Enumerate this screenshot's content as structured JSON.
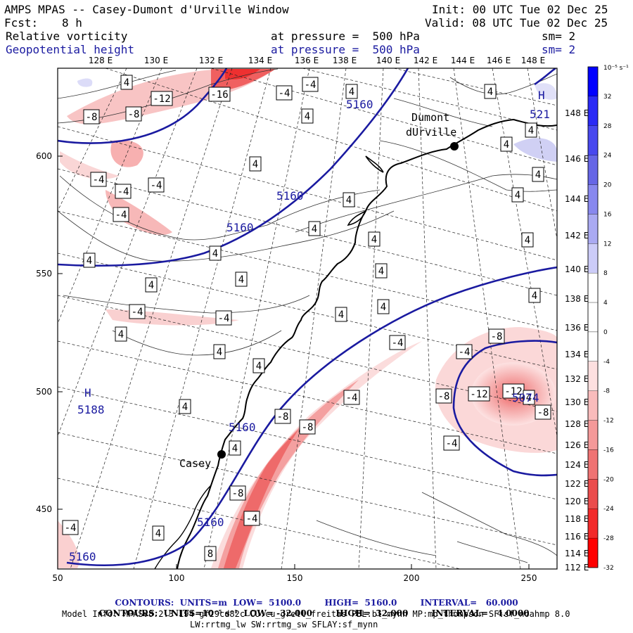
{
  "header": {
    "title": "AMPS MPAS -- Casey-Dumont d'Urville Window",
    "fcst_label": "Fcst:",
    "fcst_value": "8 h",
    "init": "Init: 00 UTC Tue 02 Dec 25",
    "valid": "Valid: 08 UTC Tue 02 Dec 25",
    "field1_name": "Relative vorticity",
    "field1_level": "at pressure =  500 hPa",
    "field1_sm": "sm= 2",
    "field2_name": "Geopotential height",
    "field2_level": "at pressure =  500 hPa",
    "field2_sm": "sm= 2"
  },
  "axes": {
    "x_ticks": [
      "50",
      "100",
      "150",
      "200",
      "250"
    ],
    "y_ticks": [
      "600",
      "550",
      "500",
      "450"
    ],
    "lon_top": [
      "128 E",
      "130 E",
      "132 E",
      "134 E",
      "136 E",
      "138 E",
      "140 E",
      "142 E",
      "144 E",
      "146 E",
      "148 E"
    ],
    "lon_right": [
      "148 E",
      "146 E",
      "144 E",
      "142 E",
      "140 E",
      "138 E",
      "136 E",
      "134 E",
      "132 E",
      "130 E",
      "128 E",
      "126 E",
      "124 E",
      "122 E",
      "120 E",
      "118 E",
      "116 E",
      "114 E",
      "112 E"
    ]
  },
  "stations": [
    {
      "name": "Dumont",
      "name2": "dUrville"
    },
    {
      "name": "Casey"
    }
  ],
  "height_labels": [
    "5160",
    "5160",
    "5160",
    "5160",
    "5160",
    "5160",
    "5188",
    "5074",
    "521"
  ],
  "high_marker": "H",
  "vort_labels": {
    "neg": [
      "-16",
      "-12",
      "-8",
      "-8",
      "-4",
      "-4",
      "-4",
      "-4",
      "-4",
      "-4",
      "-4",
      "-4",
      "-8",
      "-8",
      "-8",
      "-4",
      "-12",
      "-12",
      "-8",
      "-8",
      "-4",
      "-4",
      "-8",
      "-4",
      "-4",
      "-4"
    ],
    "pos": [
      "4",
      "4",
      "4",
      "4",
      "4",
      "4",
      "4",
      "4",
      "4",
      "4",
      "4",
      "4",
      "4",
      "4",
      "4",
      "4",
      "4",
      "4",
      "4",
      "4",
      "4",
      "4",
      "4",
      "4",
      "4",
      "4",
      "4",
      "8",
      "4"
    ]
  },
  "colorbar": {
    "unit": "10⁻⁵ s⁻¹",
    "labels": [
      "32",
      "28",
      "24",
      "20",
      "16",
      "12",
      "8",
      "4",
      "0",
      "-4",
      "-8",
      "-12",
      "-16",
      "-20",
      "-24",
      "-28",
      "-32"
    ],
    "colors": [
      "#0000ff",
      "#2a2af5",
      "#4848ee",
      "#6666e6",
      "#8888ee",
      "#aaaaf2",
      "#ccccf8",
      "#ffffff",
      "#ffffff",
      "#ffffff",
      "#fde0e0",
      "#f9bcbc",
      "#f49999",
      "#ef7373",
      "#ea4c4c",
      "#f22a2a",
      "#ff0000"
    ]
  },
  "footer": {
    "c1_label": "CONTOURS:",
    "c1_units": "UNITS=m",
    "c1_low": "LOW=  5100.0",
    "c1_high": "HIGH=  5160.0",
    "c1_interval": "INTERVAL=   60.000",
    "c2_label": "CONTOURS:",
    "c2_units": "UNITS=10⁻⁵ s⁻¹",
    "c2_low": "LOW= -32.000",
    "c2_high": "HIGH=  32.000",
    "c2_interval": "INTERVAL=   4.0000",
    "model_info": "Model Info: MPASv8.2.3-194-gf29cd82c CU:cu_grell_freitas PBL:bl_mynn MP:mp_thompson SF:sf_noahmp 8.0",
    "model_info2": "LW:rrtmg_lw SW:rrtmg_sw SFLAY:sf_mynn"
  },
  "theme": {
    "height_contour": "#1a1aa0",
    "neg_fill": "#f4a0a0",
    "neg_strong": "#ee4444",
    "pos_fill": "#c8c8f4"
  }
}
